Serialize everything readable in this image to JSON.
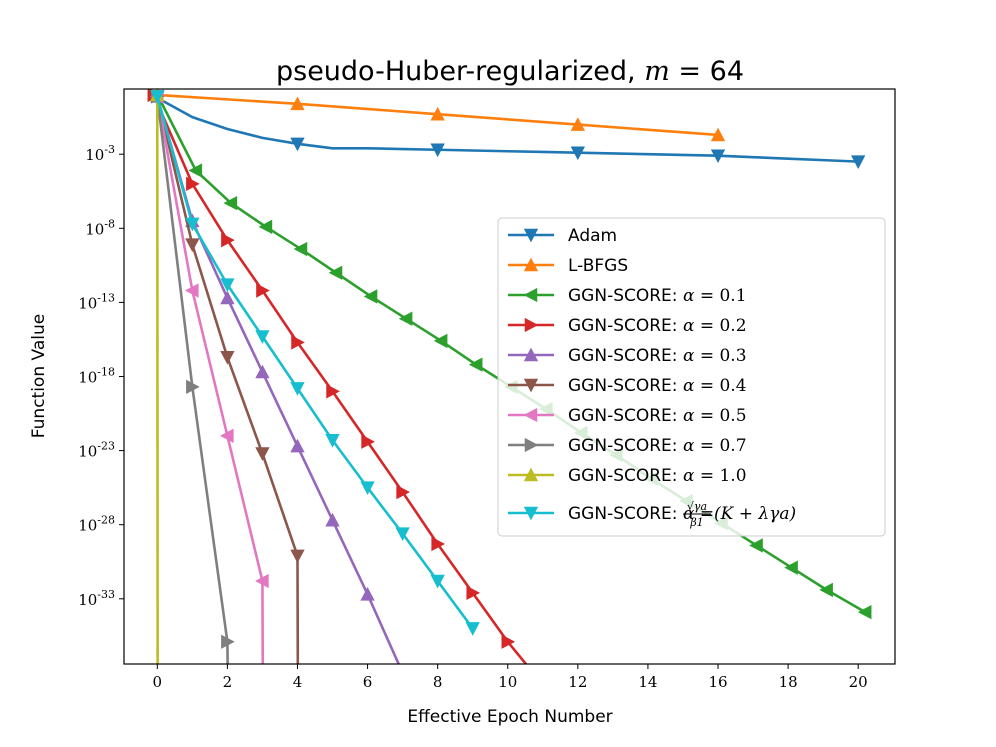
{
  "chart_data": {
    "type": "line",
    "title": "pseudo-Huber-regularized, m = 64",
    "title_parts": {
      "prefix": "pseudo-Huber-regularized,",
      "var": "m",
      "op": " = ",
      "num": "64"
    },
    "xlabel": "Effective Epoch Number",
    "ylabel": "Function Value",
    "y_scale": "log",
    "xlim": [
      -0.95,
      21.05
    ],
    "ylim_log10": [
      -37.4,
      1.4
    ],
    "x_ticks": [
      0,
      2,
      4,
      6,
      8,
      10,
      12,
      14,
      16,
      18,
      20
    ],
    "y_ticks_log10": [
      -3,
      -8,
      -13,
      -18,
      -23,
      -28,
      -33
    ],
    "legend_position": "center-right",
    "series": [
      {
        "name": "Adam",
        "color": "#1f77b4",
        "marker": "triangle-down",
        "x": [
          0,
          1,
          2,
          3,
          4,
          5,
          6,
          7,
          8,
          9,
          10,
          11,
          12,
          13,
          14,
          15,
          16,
          17,
          18,
          19,
          20
        ],
        "log10_y": [
          0.8,
          -0.5,
          -1.3,
          -1.9,
          -2.3,
          -2.6,
          -2.6,
          -2.65,
          -2.7,
          -2.75,
          -2.8,
          -2.85,
          -2.9,
          -2.95,
          -3.0,
          -3.05,
          -3.1,
          -3.2,
          -3.3,
          -3.4,
          -3.5
        ],
        "marker_x": [
          0,
          4,
          8,
          12,
          16,
          20
        ]
      },
      {
        "name": "L-BFGS",
        "color": "#ff7f0e",
        "marker": "triangle-up",
        "x": [
          0,
          4,
          8,
          12,
          16
        ],
        "log10_y": [
          1.0,
          0.4,
          -0.3,
          -1.0,
          -1.7
        ],
        "marker_x": [
          0,
          4,
          8,
          12,
          16
        ]
      },
      {
        "name": "GGN-SCORE: α = 0.1",
        "label_math": "0.1",
        "color": "#2ca02c",
        "marker": "triangle-left",
        "x": [
          0,
          0.05,
          1.1,
          2.1,
          3.1,
          4.1,
          5.1,
          6.1,
          7.1,
          8.1,
          9.1,
          10.1,
          11.1,
          12.1,
          13.1,
          14.1,
          15.1,
          16.1,
          17.1,
          18.1,
          19.1,
          20.2
        ],
        "log10_y": [
          0.8,
          0.8,
          -4.1,
          -6.3,
          -7.9,
          -9.4,
          -11.0,
          -12.6,
          -14.1,
          -15.6,
          -17.2,
          -18.7,
          -20.2,
          -21.8,
          -23.3,
          -24.9,
          -26.4,
          -27.9,
          -29.4,
          -30.9,
          -32.4,
          -33.9
        ],
        "marker_x": [
          1.1,
          2.1,
          3.1,
          4.1,
          5.1,
          6.1,
          7.1,
          8.1,
          9.1,
          10.1,
          11.1,
          12.1,
          13.1,
          14.1,
          15.1,
          16.1,
          17.1,
          18.1,
          19.1,
          20.2
        ]
      },
      {
        "name": "GGN-SCORE: α = 0.2",
        "label_math": "0.2",
        "color": "#d62728",
        "marker": "triangle-right",
        "x": [
          -0.1,
          1.0,
          2.0,
          3.0,
          4.0,
          5.0,
          6.0,
          7.0,
          8.0,
          9.0,
          10.0,
          10.9
        ],
        "log10_y": [
          1.0,
          -5.0,
          -8.8,
          -12.2,
          -15.7,
          -19.0,
          -22.4,
          -25.8,
          -29.3,
          -32.6,
          -35.9,
          -38.5
        ],
        "marker_x": [
          -0.1,
          1.0,
          2.0,
          3.0,
          4.0,
          5.0,
          6.0,
          7.0,
          8.0,
          9.0,
          10.0,
          10.9
        ]
      },
      {
        "name": "GGN-SCORE: α = 0.3",
        "label_math": "0.3",
        "color": "#9467bd",
        "marker": "triangle-up",
        "x": [
          0,
          1,
          2,
          3,
          4,
          5,
          6,
          7
        ],
        "log10_y": [
          0.9,
          -7.5,
          -12.7,
          -17.7,
          -22.7,
          -27.7,
          -32.7,
          -38.0
        ],
        "marker_x": [
          0,
          1,
          2,
          3,
          4,
          5,
          6
        ]
      },
      {
        "name": "GGN-SCORE: α = 0.4",
        "label_math": "0.4",
        "color": "#8c564b",
        "marker": "triangle-down",
        "x": [
          0,
          1,
          2,
          3,
          4,
          4.01
        ],
        "log10_y": [
          0.9,
          -9.1,
          -16.7,
          -23.2,
          -30.1,
          -38.0
        ],
        "marker_x": [
          0,
          1,
          2,
          3,
          4
        ]
      },
      {
        "name": "GGN-SCORE: α = 0.5",
        "label_math": "0.5",
        "color": "#e377c2",
        "marker": "triangle-left",
        "x": [
          0,
          1,
          2,
          3,
          3.01
        ],
        "log10_y": [
          0.9,
          -12.2,
          -22.0,
          -31.8,
          -38.0
        ],
        "marker_x": [
          0,
          1,
          2,
          3
        ]
      },
      {
        "name": "GGN-SCORE: α = 0.7",
        "label_math": "0.7",
        "color": "#7f7f7f",
        "marker": "triangle-right",
        "x": [
          0,
          1,
          2,
          2.01
        ],
        "log10_y": [
          0.9,
          -18.7,
          -35.9,
          -38.0
        ],
        "marker_x": [
          0,
          1,
          2
        ]
      },
      {
        "name": "GGN-SCORE: α = 1.0",
        "label_math": "1.0",
        "color": "#bcbd22",
        "marker": "triangle-up",
        "x": [
          0,
          0.01
        ],
        "log10_y": [
          1.0,
          -38.0
        ],
        "marker_x": [
          0
        ]
      },
      {
        "name": "GGN-SCORE: α = (√γa/β1)(K + λγa)",
        "label_math": "formula",
        "color": "#17becf",
        "marker": "triangle-down",
        "x": [
          0,
          1,
          2,
          3,
          4,
          5,
          6,
          7,
          8,
          9
        ],
        "log10_y": [
          0.9,
          -7.7,
          -11.8,
          -15.3,
          -18.8,
          -22.3,
          -25.5,
          -28.6,
          -31.8,
          -35.0
        ],
        "marker_x": [
          0,
          1,
          2,
          3,
          4,
          5,
          6,
          7,
          8,
          9
        ]
      }
    ],
    "legend_prefix": "GGN-SCORE:",
    "formula": {
      "num": "√γa",
      "den": "β1",
      "rest": "(K + λγa)"
    }
  }
}
